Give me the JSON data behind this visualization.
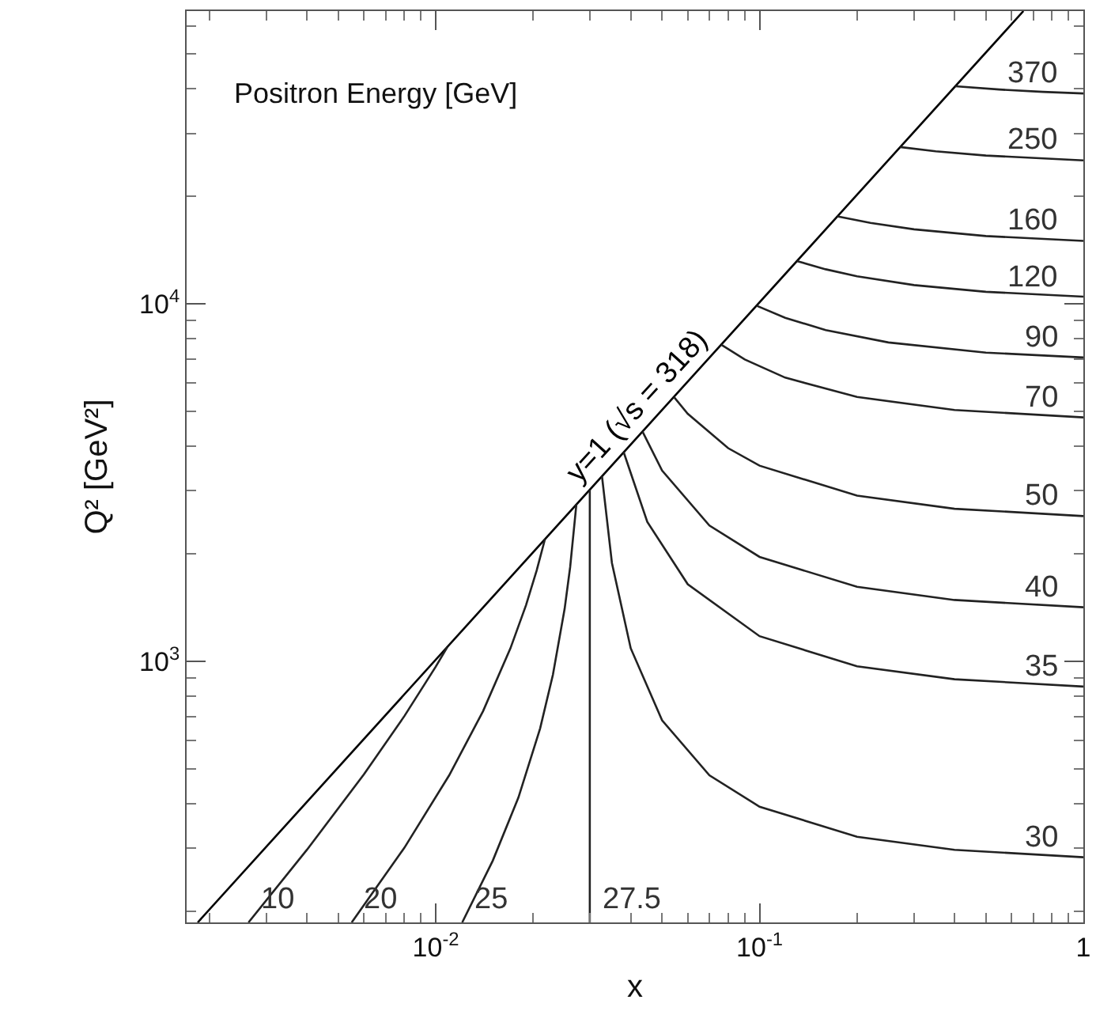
{
  "chart_data": {
    "type": "line",
    "xlabel": "x",
    "ylabel": "Q² [GeV²]",
    "log": "xy",
    "grid": false,
    "legend": false,
    "marker": "none",
    "line_style": "solid",
    "xlim": [
      0.0017,
      1
    ],
    "ylim": [
      186,
      66000
    ],
    "xticks": [
      {
        "value": 0.002,
        "label": null
      },
      {
        "value": 0.003,
        "label": null
      },
      {
        "value": 0.004,
        "label": null
      },
      {
        "value": 0.005,
        "label": null
      },
      {
        "value": 0.006,
        "label": null
      },
      {
        "value": 0.007,
        "label": null
      },
      {
        "value": 0.008,
        "label": null
      },
      {
        "value": 0.009,
        "label": null
      },
      {
        "value": 0.01,
        "label": "10$^{-2}$"
      },
      {
        "value": 0.02,
        "label": null
      },
      {
        "value": 0.03,
        "label": null
      },
      {
        "value": 0.04,
        "label": null
      },
      {
        "value": 0.05,
        "label": null
      },
      {
        "value": 0.06,
        "label": null
      },
      {
        "value": 0.07,
        "label": null
      },
      {
        "value": 0.08,
        "label": null
      },
      {
        "value": 0.09,
        "label": null
      },
      {
        "value": 0.1,
        "label": "10$^{-1}$"
      },
      {
        "value": 0.2,
        "label": null
      },
      {
        "value": 0.3,
        "label": null
      },
      {
        "value": 0.4,
        "label": null
      },
      {
        "value": 0.5,
        "label": null
      },
      {
        "value": 0.6,
        "label": null
      },
      {
        "value": 0.7,
        "label": null
      },
      {
        "value": 0.8,
        "label": null
      },
      {
        "value": 0.9,
        "label": null
      },
      1
    ],
    "yticks": [
      {
        "value": 200,
        "label": null
      },
      {
        "value": 300,
        "label": null
      },
      {
        "value": 400,
        "label": null
      },
      {
        "value": 500,
        "label": null
      },
      {
        "value": 600,
        "label": null
      },
      {
        "value": 700,
        "label": null
      },
      {
        "value": 800,
        "label": null
      },
      {
        "value": 900,
        "label": null
      },
      {
        "value": 1000,
        "label": "10$^{3}$"
      },
      {
        "value": 2000,
        "label": null
      },
      {
        "value": 3000,
        "label": null
      },
      {
        "value": 4000,
        "label": null
      },
      {
        "value": 5000,
        "label": null
      },
      {
        "value": 6000,
        "label": null
      },
      {
        "value": 7000,
        "label": null
      },
      {
        "value": 8000,
        "label": null
      },
      {
        "value": 9000,
        "label": null
      },
      {
        "value": 10000,
        "label": "10$^{4}$"
      },
      {
        "value": 20000,
        "label": null
      },
      {
        "value": 30000,
        "label": null
      },
      {
        "value": 40000,
        "label": null
      },
      {
        "value": 50000,
        "label": null
      },
      {
        "value": 60000,
        "label": null
      }
    ],
    "annotations": [
      "Positron Energy [GeV]"
    ],
    "series": [
      {
        "name": "y=1 (√s = 318)",
        "color": "#000000",
        "x": [
          0.00184,
          0.653
        ],
        "values": [
          186,
          66000
        ]
      },
      {
        "name": "10",
        "color": "#222222",
        "x": [
          0.00264,
          0.004,
          0.006,
          0.008,
          0.01,
          0.01087
        ],
        "values": [
          186,
          297,
          483,
          703,
          967,
          1099
        ]
      },
      {
        "name": "20",
        "color": "#222222",
        "x": [
          0.0055,
          0.008,
          0.011,
          0.014,
          0.017,
          0.019,
          0.0205,
          0.02174
        ],
        "values": [
          186,
          301,
          480,
          726,
          1087,
          1437,
          1799,
          2198
        ]
      },
      {
        "name": "25",
        "color": "#222222",
        "x": [
          0.01207,
          0.015,
          0.018,
          0.021,
          0.023,
          0.025,
          0.026,
          0.02718
        ],
        "values": [
          186,
          277,
          416,
          649,
          917,
          1403,
          1834,
          2752
        ]
      },
      {
        "name": "27.5",
        "color": "#222222",
        "x": [
          0.0299,
          0.0299
        ],
        "values": [
          186,
          3020
        ]
      },
      {
        "name": "30",
        "color": "#222222",
        "x": [
          0.0326,
          0.035,
          0.04,
          0.05,
          0.07,
          0.1,
          0.2,
          0.4,
          1
        ],
        "values": [
          3300,
          1884,
          1088,
          684,
          480,
          392,
          323,
          297,
          283
        ]
      },
      {
        "name": "35",
        "color": "#222222",
        "x": [
          0.03804,
          0.045,
          0.06,
          0.1,
          0.2,
          0.4,
          1
        ],
        "values": [
          3850,
          2456,
          1643,
          1176,
          969,
          891,
          850
        ]
      },
      {
        "name": "40",
        "color": "#222222",
        "x": [
          0.04348,
          0.05,
          0.07,
          0.1,
          0.2,
          0.4,
          1
        ],
        "values": [
          4397,
          3418,
          2399,
          1960,
          1616,
          1485,
          1417
        ]
      },
      {
        "name": "50",
        "color": "#222222",
        "x": [
          0.05435,
          0.06,
          0.08,
          0.1,
          0.2,
          0.4,
          1
        ],
        "values": [
          5496,
          4930,
          3949,
          3528,
          2908,
          2673,
          2550
        ]
      },
      {
        "name": "70",
        "color": "#222222",
        "x": [
          0.07609,
          0.09,
          0.12,
          0.2,
          0.4,
          1
        ],
        "values": [
          7695,
          6996,
          6222,
          5493,
          5050,
          4816
        ]
      },
      {
        "name": "90",
        "color": "#222222",
        "x": [
          0.09783,
          0.12,
          0.16,
          0.25,
          0.5,
          1
        ],
        "values": [
          9893,
          9150,
          8449,
          7804,
          7308,
          7082
        ]
      },
      {
        "name": "120",
        "color": "#222222",
        "x": [
          0.1304,
          0.16,
          0.2,
          0.3,
          0.5,
          1
        ],
        "values": [
          13190,
          12505,
          11956,
          11294,
          10815,
          10482
        ]
      },
      {
        "name": "160",
        "color": "#222222",
        "x": [
          0.1739,
          0.22,
          0.3,
          0.5,
          1
        ],
        "values": [
          17590,
          16857,
          16178,
          15492,
          15015
        ]
      },
      {
        "name": "250",
        "color": "#222222",
        "x": [
          0.2717,
          0.35,
          0.5,
          1
        ],
        "values": [
          27480,
          26744,
          26015,
          25214
        ]
      },
      {
        "name": "370",
        "color": "#222222",
        "x": [
          0.4022,
          0.55,
          0.75,
          1
        ],
        "values": [
          40670,
          39816,
          39215,
          38812
        ]
      }
    ]
  }
}
